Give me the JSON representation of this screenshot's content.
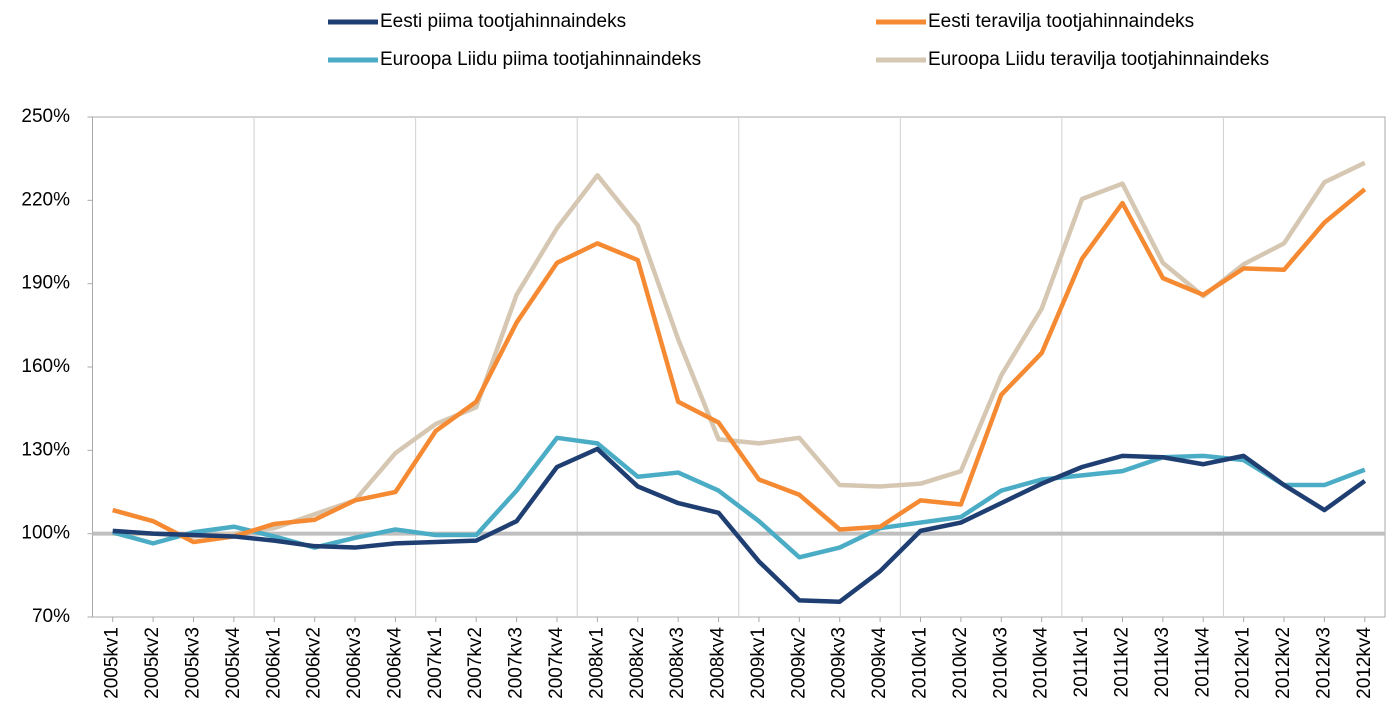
{
  "chart_data": {
    "type": "line",
    "categories": [
      "2005kv1",
      "2005kv2",
      "2005kv3",
      "2005kv4",
      "2006kv1",
      "2006kv2",
      "2006kv3",
      "2006kv4",
      "2007kv1",
      "2007kv2",
      "2007kv3",
      "2007kv4",
      "2008kv1",
      "2008kv2",
      "2008kv3",
      "2008kv4",
      "2009kv1",
      "2009kv2",
      "2009kv3",
      "2009kv4",
      "2010kv1",
      "2010kv2",
      "2010kv3",
      "2010kv4",
      "2011kv1",
      "2011kv2",
      "2011kv3",
      "2011kv4",
      "2012kv1",
      "2012kv2",
      "2012kv3",
      "2012kv4"
    ],
    "series": [
      {
        "name": "Eesti piima tootjahinnaindeks",
        "color": "#1f3f73",
        "values": [
          101,
          100,
          99.5,
          99,
          97.5,
          95.5,
          95,
          96.5,
          97,
          97.5,
          104.5,
          124,
          130.5,
          117,
          111,
          107.5,
          90,
          76,
          75.5,
          86.5,
          101,
          104,
          111,
          118,
          124,
          128,
          127.5,
          125,
          128,
          117.5,
          108.5,
          119
        ]
      },
      {
        "name": "Eesti teravilja tootjahinnaindeks",
        "color": "#f58a33",
        "values": [
          108.5,
          104.5,
          97,
          99,
          103.5,
          105,
          112,
          115,
          137,
          147.5,
          176,
          197.5,
          204.5,
          198.5,
          147.5,
          140,
          119.5,
          114,
          101.5,
          102.5,
          112,
          110.5,
          150,
          165,
          199,
          219,
          192,
          186,
          195.5,
          195,
          212,
          224
        ]
      },
      {
        "name": "Euroopa Liidu piima tootjahinnaindeks",
        "color": "#4bacc6",
        "values": [
          100.5,
          96.5,
          100.5,
          102.5,
          99,
          95,
          98.5,
          101.5,
          99.5,
          99.5,
          115.5,
          134.5,
          132.5,
          120.5,
          122,
          115.5,
          104.5,
          91.5,
          95,
          102,
          104,
          106,
          115.5,
          119.5,
          121,
          122.5,
          127.5,
          128,
          126.5,
          117.5,
          117.5,
          123
        ]
      },
      {
        "name": "Euroopa Liidu teravilja tootjahinnaindeks",
        "color": "#d6c7b3",
        "values": [
          100,
          100,
          99,
          100,
          102,
          107,
          112,
          129,
          139.5,
          145.5,
          186,
          210,
          229,
          211,
          170,
          134,
          132.5,
          134.5,
          117.5,
          117,
          118,
          122.5,
          157,
          181,
          220.5,
          226,
          197.5,
          185.5,
          197,
          204.5,
          226.5,
          233.5
        ]
      }
    ],
    "ylim": [
      70,
      250
    ],
    "yticks": [
      {
        "value": 70,
        "label": "70%"
      },
      {
        "value": 100,
        "label": "100%"
      },
      {
        "value": 130,
        "label": "130%"
      },
      {
        "value": 160,
        "label": "160%"
      },
      {
        "value": 190,
        "label": "190%"
      },
      {
        "value": 220,
        "label": "220%"
      },
      {
        "value": 250,
        "label": "250%"
      }
    ],
    "reference_line": 100,
    "xgrid_every": 4,
    "legend": "top"
  }
}
